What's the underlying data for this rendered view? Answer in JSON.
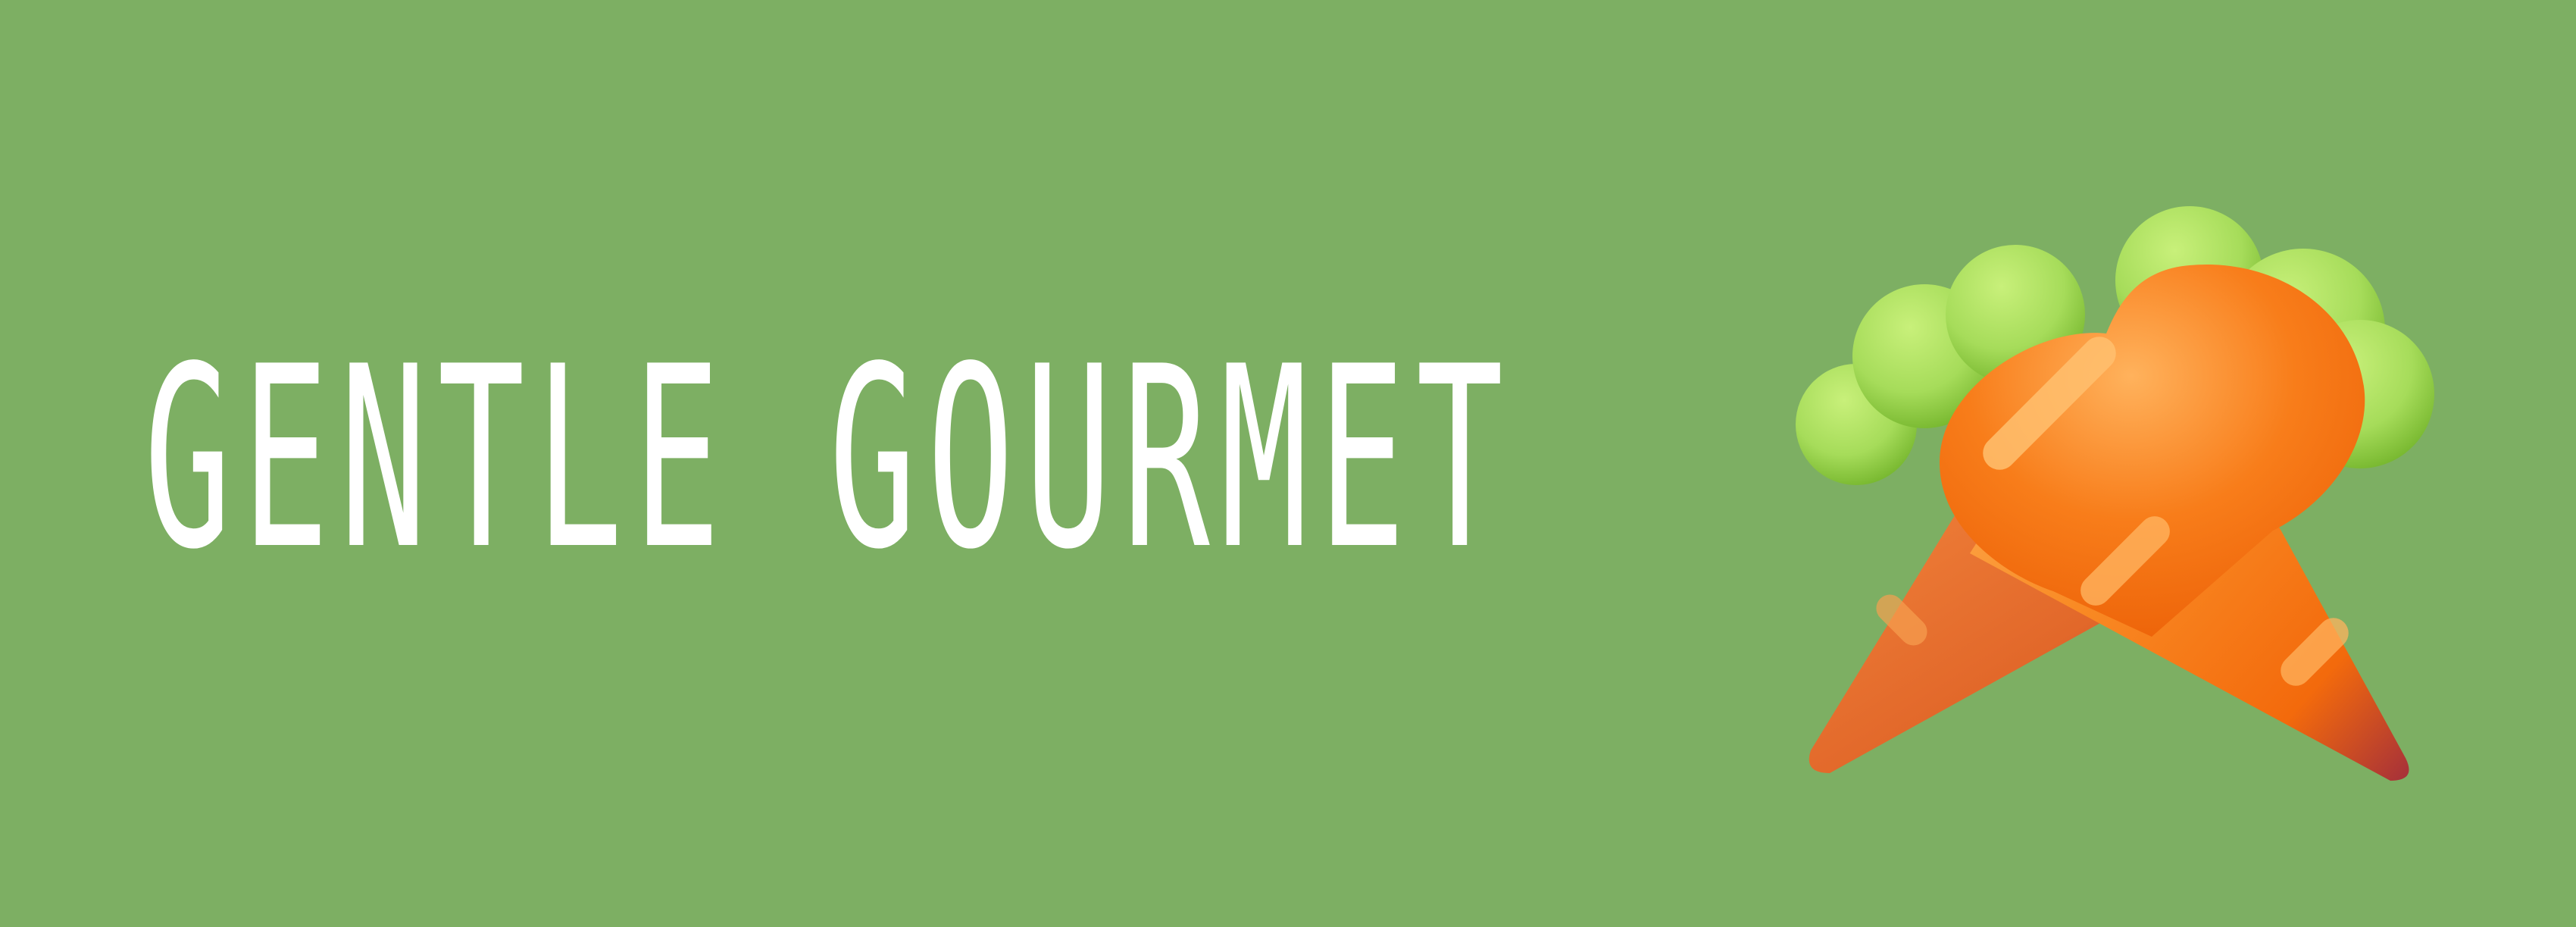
{
  "brand": {
    "name": "GENTLE GOURMET",
    "background_color": "#7daf63",
    "text_color": "#ffffff"
  },
  "logo": {
    "icon": "carrots-icon",
    "colors": {
      "carrot_orange": "#f56c0c",
      "carrot_light": "#ffb25c",
      "carrot_tip": "#a8323f",
      "leaf_light": "#c0ec6c",
      "leaf_dark": "#7cc12c"
    }
  }
}
